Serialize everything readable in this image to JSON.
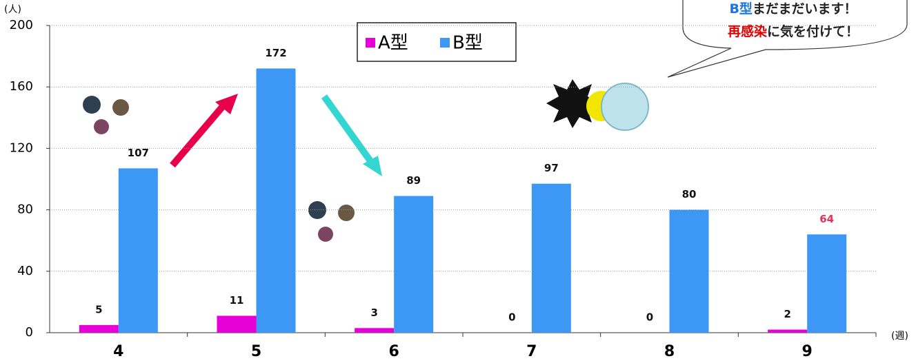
{
  "chart_data": {
    "type": "bar",
    "categories": [
      "4",
      "5",
      "6",
      "7",
      "8",
      "9"
    ],
    "series": [
      {
        "name": "A型",
        "color": "#e600d8",
        "values": [
          5,
          11,
          3,
          0,
          0,
          2
        ]
      },
      {
        "name": "B型",
        "color": "#3d97f5",
        "values": [
          107,
          172,
          89,
          97,
          80,
          64
        ]
      }
    ],
    "ylim": [
      0,
      200
    ],
    "yticks": [
      0,
      40,
      80,
      120,
      160,
      200
    ],
    "grid": true,
    "y_label": "(人)",
    "x_label": "(週)",
    "legend": "top",
    "highlight": {
      "series": 1,
      "index": 5,
      "color": "#e8305a"
    },
    "annotation": [
      [
        {
          "text": "B型",
          "color": "#1a73e8"
        },
        {
          "text": "まだまだいます！",
          "color": "#222222"
        }
      ],
      [
        {
          "text": "再感染",
          "color": "#e00000"
        },
        {
          "text": "に気を付けて！",
          "color": "#222222"
        }
      ]
    ]
  }
}
